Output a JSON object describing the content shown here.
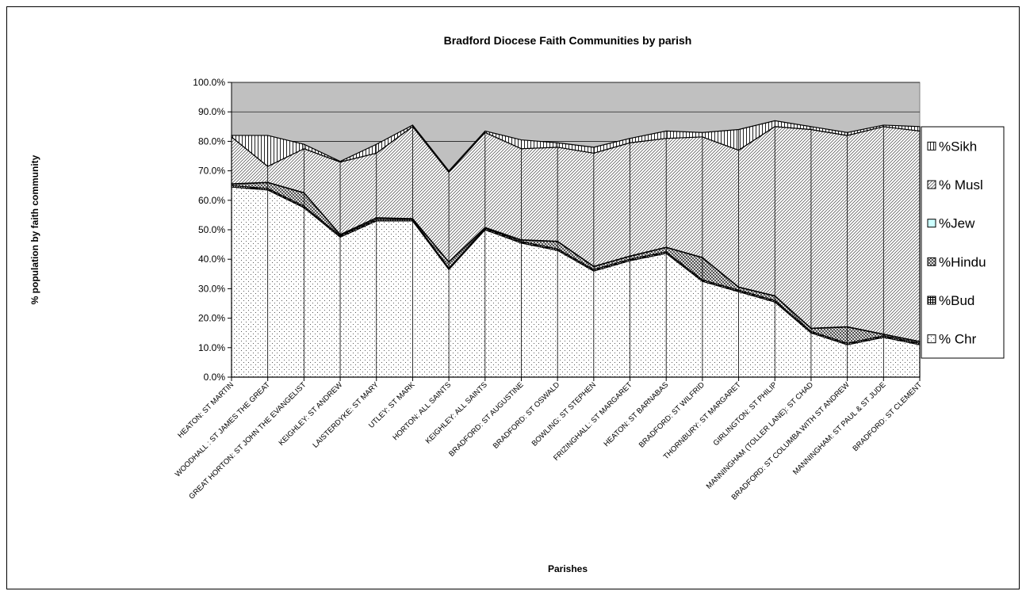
{
  "chart_data": {
    "type": "stacked-area",
    "title": "Bradford Diocese Faith Communities by parish",
    "x_label": "Parishes",
    "y_label": "% population by faith community",
    "categories": [
      "HEATON: ST MARTIN",
      "WOODHALL : ST JAMES THE GREAT",
      "GREAT HORTON: ST JOHN THE EVANGELIST",
      "KEIGHLEY: ST ANDREW",
      "LAISTERDYKE: ST MARY",
      "UTLEY: ST MARK",
      "HORTON: ALL SAINTS",
      "KEIGHLEY: ALL SAINTS",
      "BRADFORD: ST AUGUSTINE",
      "BRADFORD: ST OSWALD",
      "BOWLING: ST STEPHEN",
      "FRIZINGHALL: ST MARGARET",
      "HEATON: ST BARNABAS",
      "BRADFORD: ST WILFRID",
      "THORNBURY: ST MARGARET",
      "GIRLINGTON: ST PHILIP",
      "MANNINGHAM (TOLLER LANE): ST CHAD",
      "BRADFORD: ST COLUMBA WITH ST ANDREW",
      "MANNINGHAM: ST PAUL & ST JUDE",
      "BRADFORD: ST CLEMENT"
    ],
    "series": [
      {
        "name": "% Chr",
        "color": "#ffffff",
        "values": [
          64.5,
          63.5,
          57.5,
          47.5,
          53,
          53,
          36.5,
          50,
          45.5,
          43,
          36,
          39.5,
          42,
          32.5,
          29,
          25.5,
          15,
          11,
          13.5,
          11
        ]
      },
      {
        "name": "%Bud",
        "color": "#ffffff",
        "values": [
          0.5,
          0.5,
          0.5,
          0.5,
          0.5,
          0.5,
          0.5,
          0.5,
          0.5,
          0.5,
          0.5,
          0.5,
          0.5,
          0.5,
          0.5,
          0.5,
          0.5,
          0.5,
          0.5,
          0.5
        ]
      },
      {
        "name": "%Hindu",
        "color": "#ffffff",
        "values": [
          0.5,
          2,
          4.5,
          0.3,
          0.5,
          0.2,
          2,
          0.2,
          0.5,
          2.5,
          1,
          1,
          1.5,
          7.5,
          1,
          1.5,
          1,
          5.5,
          0.5,
          0.5
        ]
      },
      {
        "name": "%Jew",
        "color": "#ccffff",
        "values": [
          0.1,
          0.1,
          0.1,
          0.1,
          0.1,
          0.1,
          0.1,
          0.1,
          0.1,
          0.1,
          0.1,
          0.1,
          0.1,
          0.1,
          0.1,
          0.1,
          0.1,
          0.1,
          0.1,
          0.1
        ]
      },
      {
        "name": "% Musl",
        "color": "#ffffff",
        "values": [
          15.9,
          5.4,
          14.9,
          24.6,
          21.9,
          31.2,
          30.4,
          32.2,
          30.9,
          31.9,
          38.4,
          38.4,
          36.9,
          40.9,
          46.4,
          57.4,
          67.4,
          64.9,
          70.4,
          71.4
        ]
      },
      {
        "name": "%Sikh",
        "color": "#ffffff",
        "values": [
          0.5,
          10.5,
          1.5,
          0.2,
          3,
          0.5,
          0.5,
          0.5,
          3,
          1.5,
          2,
          1.5,
          2.5,
          1.5,
          7,
          2,
          1,
          1,
          0.5,
          1.5
        ]
      }
    ],
    "ylim": [
      0,
      100
    ],
    "yticks": [
      {
        "value": 0,
        "label": "0.0%"
      },
      {
        "value": 10,
        "label": "10.0%"
      },
      {
        "value": 20,
        "label": "20.0%"
      },
      {
        "value": 30,
        "label": "30.0%"
      },
      {
        "value": 40,
        "label": "40.0%"
      },
      {
        "value": 50,
        "label": "50.0%"
      },
      {
        "value": 60,
        "label": "60.0%"
      },
      {
        "value": 70,
        "label": "70.0%"
      },
      {
        "value": 80,
        "label": "80.0%"
      },
      {
        "value": 90,
        "label": "90.0%"
      },
      {
        "value": 100,
        "label": "100.0%"
      }
    ],
    "grid": true,
    "legend": "right"
  }
}
